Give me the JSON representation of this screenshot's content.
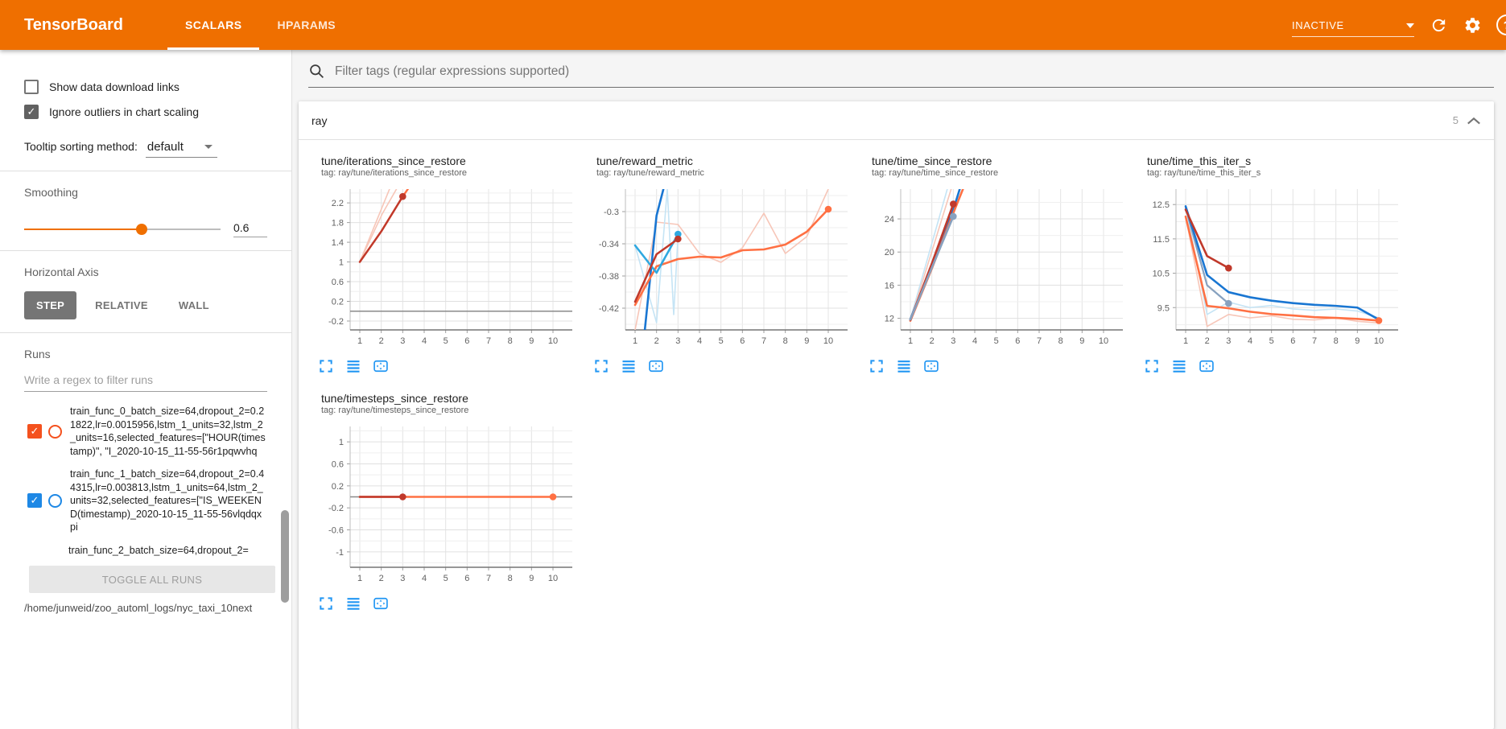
{
  "header": {
    "logo": "TensorBoard",
    "tabs": [
      {
        "label": "SCALARS",
        "active": true
      },
      {
        "label": "HPARAMS",
        "active": false
      }
    ],
    "run_selector": {
      "value": "INACTIVE"
    },
    "icons": [
      "refresh-icon",
      "settings-gear-icon",
      "help-icon"
    ],
    "accent_color": "#ef6f00"
  },
  "glyphs": {
    "check": "✓",
    "help": "?"
  },
  "sidebar": {
    "checkboxes": [
      {
        "label": "Show data download links",
        "checked": false
      },
      {
        "label": "Ignore outliers in chart scaling",
        "checked": true
      }
    ],
    "tooltip_sorting": {
      "label": "Tooltip sorting method:",
      "value": "default"
    },
    "smoothing": {
      "label": "Smoothing",
      "value": "0.6",
      "percent": 60
    },
    "horizontal_axis": {
      "label": "Horizontal Axis",
      "options": [
        {
          "label": "STEP",
          "active": true
        },
        {
          "label": "RELATIVE",
          "active": false
        },
        {
          "label": "WALL",
          "active": false
        }
      ]
    },
    "runs": {
      "label": "Runs",
      "filter_placeholder": "Write a regex to filter runs",
      "items": [
        {
          "color": "#f4511e",
          "checked": true,
          "label": "train_func_0_batch_size=64,dropout_2=0.21822,lr=0.0015956,lstm_1_units=32,lstm_2_units=16,selected_features=[\"HOUR(timestamp)\", \"I_2020-10-15_11-55-56r1pqwvhq"
        },
        {
          "color": "#1e88e5",
          "checked": true,
          "label": "train_func_1_batch_size=64,dropout_2=0.44315,lr=0.003813,lstm_1_units=64,lstm_2_units=32,selected_features=[\"IS_WEEKEND(timestamp)_2020-10-15_11-55-56vlqdqxpi"
        },
        {
          "color": null,
          "checked": null,
          "label": "train_func_2_batch_size=64,dropout_2="
        }
      ],
      "toggle_all_label": "TOGGLE ALL RUNS",
      "log_path": "/home/junweid/zoo_automl_logs/nyc_taxi_10next"
    }
  },
  "main": {
    "filter_placeholder": "Filter tags (regular expressions supported)",
    "section": {
      "title": "ray",
      "count": "5"
    }
  },
  "chart_data": [
    {
      "type": "line",
      "title": "tune/iterations_since_restore",
      "tag": "tag: ray/tune/iterations_since_restore",
      "x_ticks": [
        1,
        2,
        3,
        4,
        5,
        6,
        7,
        8,
        9,
        10
      ],
      "x_domain": [
        0.55,
        10.9
      ],
      "y_ticks": [
        "2.2",
        "1.8",
        "1.4",
        "1",
        "0.6",
        "0.2",
        "-0.2"
      ],
      "y_domain": [
        -0.38,
        2.48
      ],
      "zero_line": true,
      "series": [
        {
          "name": "run_orange_raw",
          "color": "#f7c6b8",
          "width": 1.6,
          "points": [
            [
              1,
              1
            ],
            [
              2.45,
              2.55
            ]
          ]
        },
        {
          "name": "run_red_raw",
          "color": "#f7c6b8",
          "width": 1.6,
          "points": [
            [
              1,
              1
            ],
            [
              2.05,
              1.98
            ],
            [
              2.8,
              2.55
            ]
          ]
        },
        {
          "name": "run_orange_smoothed",
          "color": "#ff7043",
          "width": 2.4,
          "points": [
            [
              1,
              1
            ],
            [
              2,
              1.62
            ],
            [
              3,
              2.33
            ],
            [
              3.35,
              2.55
            ]
          ]
        },
        {
          "name": "run_red_smoothed",
          "color": "#c0392b",
          "width": 2.4,
          "points": [
            [
              1,
              1
            ],
            [
              2,
              1.62
            ],
            [
              3,
              2.33
            ]
          ],
          "dot": [
            3,
            2.33
          ]
        }
      ]
    },
    {
      "type": "line",
      "title": "tune/reward_metric",
      "tag": "tag: ray/tune/reward_metric",
      "x_ticks": [
        1,
        2,
        3,
        4,
        5,
        6,
        7,
        8,
        9,
        10
      ],
      "x_domain": [
        0.55,
        10.9
      ],
      "y_ticks": [
        "-0.3",
        "-0.34",
        "-0.38",
        "-0.42"
      ],
      "y_domain": [
        -0.447,
        -0.272
      ],
      "zero_line": false,
      "series": [
        {
          "name": "run_orange_raw",
          "color": "#f7c6b8",
          "width": 1.6,
          "points": [
            [
              1,
              -0.447
            ],
            [
              2,
              -0.313
            ],
            [
              3,
              -0.316
            ],
            [
              4,
              -0.352
            ],
            [
              5,
              -0.363
            ],
            [
              6,
              -0.345
            ],
            [
              7,
              -0.302
            ],
            [
              8,
              -0.352
            ],
            [
              9,
              -0.331
            ],
            [
              10,
              -0.272
            ]
          ]
        },
        {
          "name": "run_lightblue_raw",
          "color": "#c5e4f5",
          "width": 1.6,
          "points": [
            [
              1,
              -0.342
            ],
            [
              2,
              -0.438
            ],
            [
              2.5,
              -0.272
            ],
            [
              2.8,
              -0.428
            ],
            [
              3,
              -0.33
            ]
          ]
        },
        {
          "name": "run_blue_smoothed",
          "color": "#1976d2",
          "width": 2.6,
          "points": [
            [
              1.45,
              -0.448
            ],
            [
              2,
              -0.305
            ],
            [
              2.32,
              -0.272
            ]
          ]
        },
        {
          "name": "run_orange_smoothed",
          "color": "#ff7043",
          "width": 2.6,
          "points": [
            [
              1,
              -0.416
            ],
            [
              2,
              -0.368
            ],
            [
              3,
              -0.359
            ],
            [
              4,
              -0.356
            ],
            [
              5,
              -0.357
            ],
            [
              6,
              -0.348
            ],
            [
              7,
              -0.347
            ],
            [
              8,
              -0.341
            ],
            [
              9,
              -0.325
            ],
            [
              10,
              -0.297
            ]
          ],
          "dot": [
            10,
            -0.297
          ]
        },
        {
          "name": "run_lightblue_smoothed",
          "color": "#2fa8e0",
          "width": 2.6,
          "points": [
            [
              1,
              -0.342
            ],
            [
              2,
              -0.376
            ],
            [
              3,
              -0.328
            ]
          ],
          "dot": [
            3,
            -0.328
          ]
        },
        {
          "name": "run_red_smoothed",
          "color": "#c0392b",
          "width": 2.6,
          "points": [
            [
              1,
              -0.412
            ],
            [
              2,
              -0.353
            ],
            [
              3,
              -0.334
            ]
          ],
          "dot": [
            3,
            -0.334
          ]
        }
      ]
    },
    {
      "type": "line",
      "title": "tune/time_since_restore",
      "tag": "tag: ray/tune/time_since_restore",
      "x_ticks": [
        1,
        2,
        3,
        4,
        5,
        6,
        7,
        8,
        9,
        10
      ],
      "x_domain": [
        0.55,
        10.9
      ],
      "y_ticks": [
        "24",
        "20",
        "16",
        "12"
      ],
      "y_domain": [
        10.6,
        27.6
      ],
      "zero_line": false,
      "series": [
        {
          "name": "run_lightblue_raw",
          "color": "#c5e4f5",
          "width": 1.6,
          "points": [
            [
              1,
              11.9
            ],
            [
              2.72,
              27.6
            ]
          ]
        },
        {
          "name": "run_orange_raw",
          "color": "#f7c6b8",
          "width": 1.6,
          "points": [
            [
              1,
              11.7
            ],
            [
              2.9,
              27.6
            ]
          ]
        },
        {
          "name": "run_blue_smoothed",
          "color": "#1976d2",
          "width": 2.6,
          "points": [
            [
              1,
              11.9
            ],
            [
              2,
              18.3
            ],
            [
              3,
              25.1
            ],
            [
              3.3,
              27.6
            ]
          ]
        },
        {
          "name": "run_orange_smoothed",
          "color": "#ff7043",
          "width": 2.6,
          "points": [
            [
              1,
              11.7
            ],
            [
              2,
              18.0
            ],
            [
              3,
              24.7
            ],
            [
              3.45,
              27.6
            ]
          ]
        },
        {
          "name": "run_red_smoothed",
          "color": "#c0392b",
          "width": 2.6,
          "points": [
            [
              1,
              11.8
            ],
            [
              2,
              18.6
            ],
            [
              3,
              25.8
            ]
          ],
          "dot": [
            3,
            25.8
          ]
        },
        {
          "name": "run_steel_smoothed",
          "color": "#87a1bf",
          "width": 2.6,
          "points": [
            [
              1,
              11.85
            ],
            [
              2,
              18.1
            ],
            [
              3,
              24.3
            ]
          ],
          "dot": [
            3,
            24.3
          ]
        }
      ]
    },
    {
      "type": "line",
      "title": "tune/time_this_iter_s",
      "tag": "tag: ray/tune/time_this_iter_s",
      "x_ticks": [
        1,
        2,
        3,
        4,
        5,
        6,
        7,
        8,
        9,
        10
      ],
      "x_domain": [
        0.55,
        10.9
      ],
      "y_ticks": [
        "12.5",
        "11.5",
        "10.5",
        "9.5"
      ],
      "y_domain": [
        8.85,
        12.95
      ],
      "zero_line": false,
      "series": [
        {
          "name": "run_orange_raw",
          "color": "#f7c6b8",
          "width": 1.6,
          "points": [
            [
              1,
              12.15
            ],
            [
              2,
              8.95
            ],
            [
              3,
              9.3
            ],
            [
              4,
              9.2
            ],
            [
              5,
              9.26
            ],
            [
              6,
              9.16
            ],
            [
              7,
              9.14
            ],
            [
              8,
              9.2
            ],
            [
              9,
              9.1
            ],
            [
              10,
              9.05
            ]
          ]
        },
        {
          "name": "run_lightblue_raw",
          "color": "#c5e4f5",
          "width": 1.6,
          "points": [
            [
              1,
              12.45
            ],
            [
              2,
              9.3
            ],
            [
              3,
              9.66
            ],
            [
              4,
              9.5
            ],
            [
              5,
              9.56
            ],
            [
              6,
              9.46
            ],
            [
              7,
              9.42
            ],
            [
              8,
              9.46
            ],
            [
              9,
              9.4
            ],
            [
              10,
              9.2
            ]
          ]
        },
        {
          "name": "run_steel_smoothed",
          "color": "#87a1bf",
          "width": 2.2,
          "points": [
            [
              1,
              12.4
            ],
            [
              2,
              10.15
            ],
            [
              3,
              9.62
            ]
          ],
          "dot": [
            3,
            9.62
          ]
        },
        {
          "name": "run_blue_smoothed",
          "color": "#1976d2",
          "width": 2.6,
          "points": [
            [
              1,
              12.45
            ],
            [
              2,
              10.45
            ],
            [
              3,
              9.95
            ],
            [
              4,
              9.8
            ],
            [
              5,
              9.7
            ],
            [
              6,
              9.63
            ],
            [
              7,
              9.58
            ],
            [
              8,
              9.55
            ],
            [
              9,
              9.5
            ],
            [
              10,
              9.15
            ]
          ]
        },
        {
          "name": "run_orange_smoothed",
          "color": "#ff7043",
          "width": 2.6,
          "points": [
            [
              1,
              12.15
            ],
            [
              2,
              9.55
            ],
            [
              3,
              9.48
            ],
            [
              4,
              9.38
            ],
            [
              5,
              9.31
            ],
            [
              6,
              9.27
            ],
            [
              7,
              9.22
            ],
            [
              8,
              9.2
            ],
            [
              9,
              9.17
            ],
            [
              10,
              9.12
            ]
          ],
          "dot": [
            10,
            9.12
          ]
        },
        {
          "name": "run_red_smoothed",
          "color": "#c0392b",
          "width": 2.6,
          "points": [
            [
              1,
              12.35
            ],
            [
              2,
              11.0
            ],
            [
              3,
              10.65
            ]
          ],
          "dot": [
            3,
            10.65
          ]
        }
      ]
    },
    {
      "type": "line",
      "title": "tune/timesteps_since_restore",
      "tag": "tag: ray/tune/timesteps_since_restore",
      "x_ticks": [
        1,
        2,
        3,
        4,
        5,
        6,
        7,
        8,
        9,
        10
      ],
      "x_domain": [
        0.55,
        10.9
      ],
      "y_ticks": [
        "1",
        "0.6",
        "0.2",
        "-0.2",
        "-0.6",
        "-1"
      ],
      "y_domain": [
        -1.28,
        1.28
      ],
      "zero_line": true,
      "series": [
        {
          "name": "run_orange_smoothed",
          "color": "#ff7043",
          "width": 2.6,
          "points": [
            [
              1,
              0
            ],
            [
              10,
              0
            ]
          ],
          "dot": [
            10,
            0
          ]
        },
        {
          "name": "run_red_smoothed",
          "color": "#c0392b",
          "width": 2.6,
          "points": [
            [
              1,
              0
            ],
            [
              3,
              0
            ]
          ],
          "dot": [
            3,
            0
          ]
        }
      ]
    }
  ]
}
